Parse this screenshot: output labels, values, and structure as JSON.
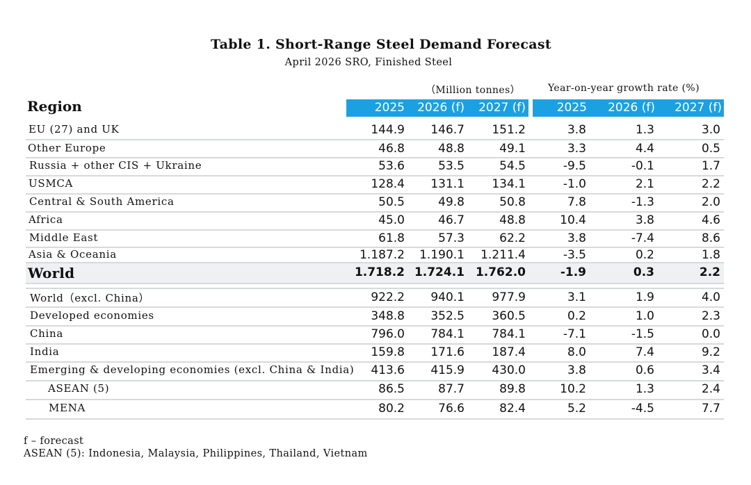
{
  "title": "Table 1. Short-Range Steel Demand Forecast",
  "subtitle": "April 2026 SRO, Finished Steel",
  "headers": {
    "million_tonnes": "（Million tonnes）",
    "growth_rate": "Year-on-year growth rate (%)",
    "region": "Region",
    "columns": [
      "2025",
      "2026 (f)",
      "2027 (f)",
      "2025",
      "2026 (f)",
      "2027 (f)"
    ]
  },
  "colors": {
    "header_bar": "#1ba1e2",
    "highlight_row": "#eef0f2",
    "row_rule": "#d6d9dd"
  },
  "rows": [
    {
      "label": "EU (27) and UK",
      "values": [
        "144.9",
        "146.7",
        "151.2",
        "3.8",
        "1.3",
        "3.0"
      ]
    },
    {
      "label": "Other Europe",
      "values": [
        "46.8",
        "48.8",
        "49.1",
        "3.3",
        "4.4",
        "0.5"
      ]
    },
    {
      "label": "Russia + other CIS + Ukraine",
      "values": [
        "53.6",
        "53.5",
        "54.5",
        "-9.5",
        "-0.1",
        "1.7"
      ]
    },
    {
      "label": "USMCA",
      "values": [
        "128.4",
        "131.1",
        "134.1",
        "-1.0",
        "2.1",
        "2.2"
      ]
    },
    {
      "label": "Central & South America",
      "values": [
        "50.5",
        "49.8",
        "50.8",
        "7.8",
        "-1.3",
        "2.0"
      ]
    },
    {
      "label": "Africa",
      "values": [
        "45.0",
        "46.7",
        "48.8",
        "10.4",
        "3.8",
        "4.6"
      ]
    },
    {
      "label": "Middle East",
      "values": [
        "61.8",
        "57.3",
        "62.2",
        "3.8",
        "-7.4",
        "8.6"
      ]
    },
    {
      "label": "Asia & Oceania",
      "values": [
        "1.187.2",
        "1.190.1",
        "1.211.4",
        "-3.5",
        "0.2",
        "1.8"
      ]
    },
    {
      "label": "World",
      "values": [
        "1.718.2",
        "1.724.1",
        "1.762.0",
        "-1.9",
        "0.3",
        "2.2"
      ]
    },
    {
      "label": "World（excl. China）",
      "values": [
        "922.2",
        "940.1",
        "977.9",
        "3.1",
        "1.9",
        "4.0"
      ]
    },
    {
      "label": "Developed economies",
      "values": [
        "348.8",
        "352.5",
        "360.5",
        "0.2",
        "1.0",
        "2.3"
      ]
    },
    {
      "label": "China",
      "values": [
        "796.0",
        "784.1",
        "784.1",
        "-7.1",
        "-1.5",
        "0.0"
      ]
    },
    {
      "label": "India",
      "values": [
        "159.8",
        "171.6",
        "187.4",
        "8.0",
        "7.4",
        "9.2"
      ]
    },
    {
      "label": "Emerging & developing economies (excl. China & India)",
      "values": [
        "413.6",
        "415.9",
        "430.0",
        "3.8",
        "0.6",
        "3.4"
      ]
    },
    {
      "label": "ASEAN (5)",
      "values": [
        "86.5",
        "87.7",
        "89.8",
        "10.2",
        "1.3",
        "2.4"
      ]
    },
    {
      "label": "MENA",
      "values": [
        "80.2",
        "76.6",
        "82.4",
        "5.2",
        "-4.5",
        "7.7"
      ]
    }
  ],
  "footnotes": [
    "f – forecast",
    "ASEAN (5): Indonesia, Malaysia, Philippines, Thailand, Vietnam"
  ]
}
